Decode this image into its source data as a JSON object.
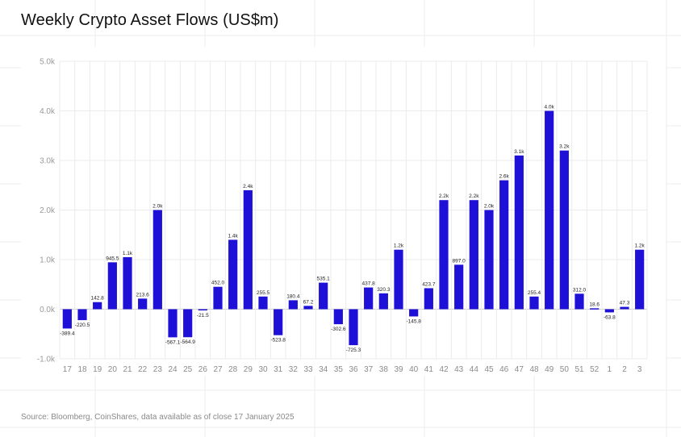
{
  "header": {
    "title": "Weekly Crypto Asset Flows (US$m)"
  },
  "footer": {
    "source": "Source: Bloomberg, CoinShares, data available as of close 17 January 2025"
  },
  "colors": {
    "bar": "#1e10d6",
    "grid": "#ebebeb",
    "axis": "#cfcfcf",
    "background_grid": "#ececec"
  },
  "chart_data": {
    "type": "bar",
    "title": "Weekly Crypto Asset Flows (US$m)",
    "xlabel": "",
    "ylabel": "",
    "ylim": [
      -1000,
      5000
    ],
    "yticks": [
      -1000,
      0,
      1000,
      2000,
      3000,
      4000,
      5000
    ],
    "ytick_labels": [
      "-1.0k",
      "0.0k",
      "1.0k",
      "2.0k",
      "3.0k",
      "4.0k",
      "5.0k"
    ],
    "grid": true,
    "categories": [
      "17",
      "18",
      "19",
      "20",
      "21",
      "22",
      "23",
      "24",
      "25",
      "26",
      "27",
      "28",
      "29",
      "30",
      "31",
      "32",
      "33",
      "34",
      "35",
      "36",
      "37",
      "38",
      "39",
      "40",
      "41",
      "42",
      "43",
      "44",
      "45",
      "46",
      "47",
      "48",
      "49",
      "50",
      "51",
      "52",
      "1",
      "2",
      "3"
    ],
    "values": [
      -389.4,
      -220.5,
      142.8,
      945.5,
      1050,
      213.6,
      2000,
      -567.1,
      -564.9,
      -21.5,
      452.0,
      1400,
      2400,
      255.5,
      -523.8,
      180.4,
      67.2,
      535.1,
      -302.6,
      -725.3,
      437.8,
      320.3,
      1200,
      -145.8,
      423.7,
      2200,
      897.0,
      2200,
      2000,
      2600,
      3100,
      255.4,
      4000,
      3200,
      312.0,
      18.6,
      -63.8,
      47.3,
      1200
    ],
    "data_labels": [
      "-389.4",
      "-220.5",
      "142.8",
      "945.5",
      "1.1k",
      "213.6",
      "2.0k",
      "-567.1",
      "-564.9",
      "-21.5",
      "452.0",
      "1.4k",
      "2.4k",
      "255.5",
      "-523.8",
      "180.4",
      "67.2",
      "535.1",
      "-302.6",
      "-725.3",
      "437.8",
      "320.3",
      "1.2k",
      "-145.8",
      "423.7",
      "2.2k",
      "897.0",
      "2.2k",
      "2.0k",
      "2.6k",
      "3.1k",
      "255.4",
      "4.0k",
      "3.2k",
      "312.0",
      "18.6",
      "-63.8",
      "47.3",
      "1.2k"
    ]
  }
}
